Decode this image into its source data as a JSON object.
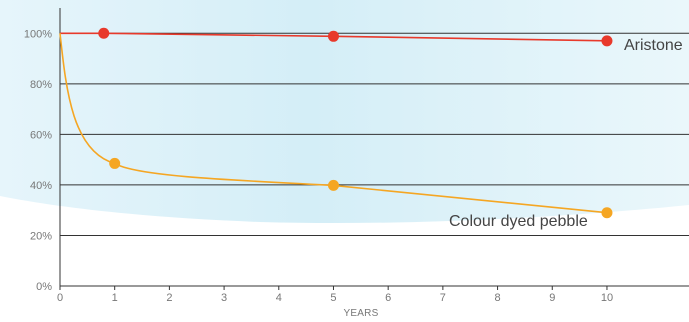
{
  "chart_data": {
    "type": "line",
    "xlabel": "YEARS",
    "ylabel": "",
    "title": "",
    "xlim": [
      0,
      11.5
    ],
    "ylim": [
      0,
      110
    ],
    "x_ticks": [
      "0",
      "1",
      "2",
      "3",
      "4",
      "5",
      "6",
      "7",
      "8",
      "9",
      "10"
    ],
    "y_ticks": [
      "0%",
      "20%",
      "40%",
      "60%",
      "80%",
      "100%"
    ],
    "grid": "horizontal",
    "colors": {
      "aristone": "#e8392b",
      "pebble": "#f5a623",
      "background_tint": "#d9f0f7",
      "gridline": "#333333"
    },
    "series": [
      {
        "name": "Aristone",
        "color": "#e8392b",
        "x": [
          0.8,
          5,
          10
        ],
        "values": [
          100,
          98.8,
          97
        ],
        "curve_start": 100
      },
      {
        "name": "Colour dyed pebble",
        "color": "#f5a623",
        "x": [
          1,
          5,
          10
        ],
        "values": [
          48.5,
          39.8,
          29
        ],
        "curve_start": 100
      }
    ]
  }
}
